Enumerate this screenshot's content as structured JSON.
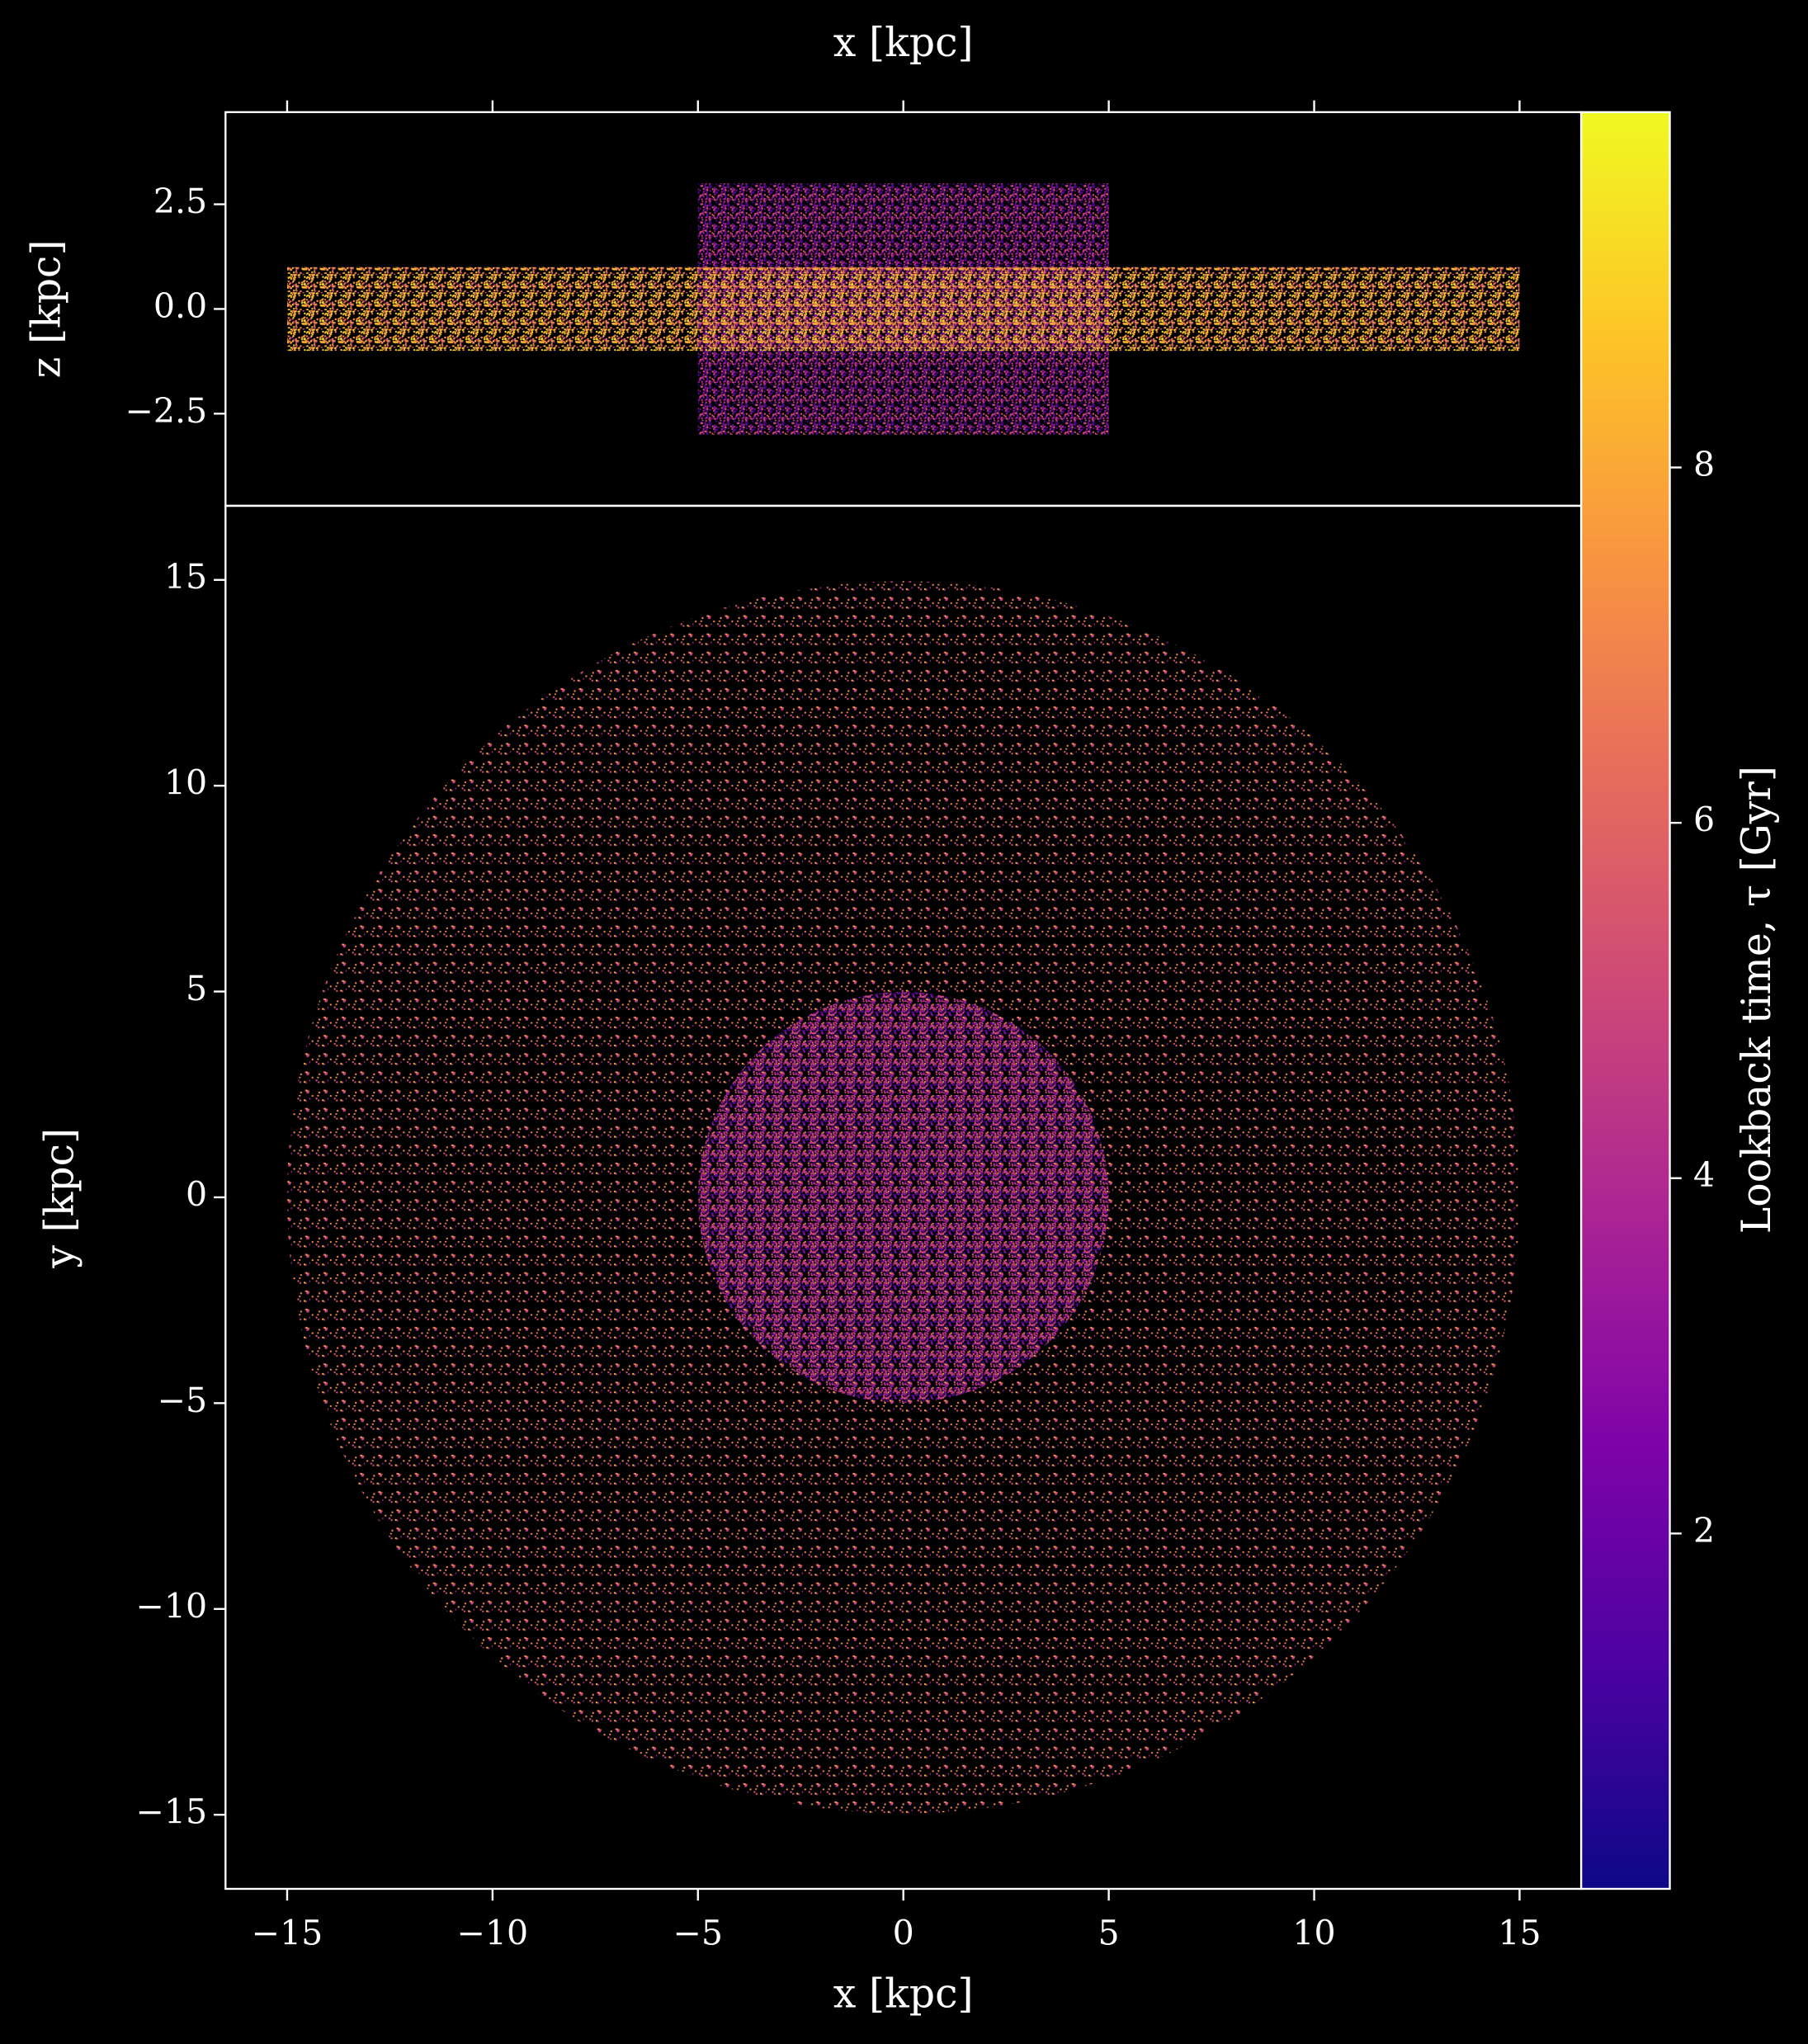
{
  "chart_data": [
    {
      "type": "scatter",
      "xlabel": "x [kpc]",
      "ylabel": "z [kpc]",
      "xlim": [
        -16.5,
        16.5
      ],
      "ylim": [
        -4.7,
        4.7
      ],
      "xticks": [
        -15,
        -10,
        -5,
        0,
        5,
        10,
        15
      ],
      "xtick_labels": false,
      "yticks": [
        {
          "value": -2.5,
          "label": "−2.5"
        },
        {
          "value": 0,
          "label": "0.0"
        },
        2.5
      ],
      "regions": [
        {
          "shape": "rect",
          "xlim": [
            -5,
            5
          ],
          "ylim": [
            -3,
            3
          ],
          "value": 3.4
        },
        {
          "shape": "rect",
          "xlim": [
            -15,
            15
          ],
          "ylim": [
            -1,
            1
          ],
          "value": 7.2
        }
      ]
    },
    {
      "type": "scatter",
      "xlabel": "x [kpc]",
      "ylabel": "y [kpc]",
      "xlim": [
        -16.5,
        16.5
      ],
      "ylim": [
        -16.8,
        16.8
      ],
      "xticks": [
        {
          "value": -15,
          "label": "−15"
        },
        {
          "value": -10,
          "label": "−10"
        },
        {
          "value": -5,
          "label": "−5"
        },
        0,
        5,
        10,
        15
      ],
      "yticks": [
        {
          "value": -15,
          "label": "−15"
        },
        {
          "value": -10,
          "label": "−10"
        },
        {
          "value": -5,
          "label": "−5"
        },
        0,
        5,
        10,
        15
      ],
      "regions": [
        {
          "shape": "circle",
          "radius": 15,
          "value": 6.2
        },
        {
          "shape": "circle",
          "radius": 5,
          "value": 3.3
        }
      ],
      "colorbar": {
        "label": "Lookback time, τ [Gyr]",
        "colormap": "plasma",
        "clim": [
          0,
          10
        ],
        "ticks": [
          2,
          4,
          6,
          8
        ]
      }
    }
  ]
}
